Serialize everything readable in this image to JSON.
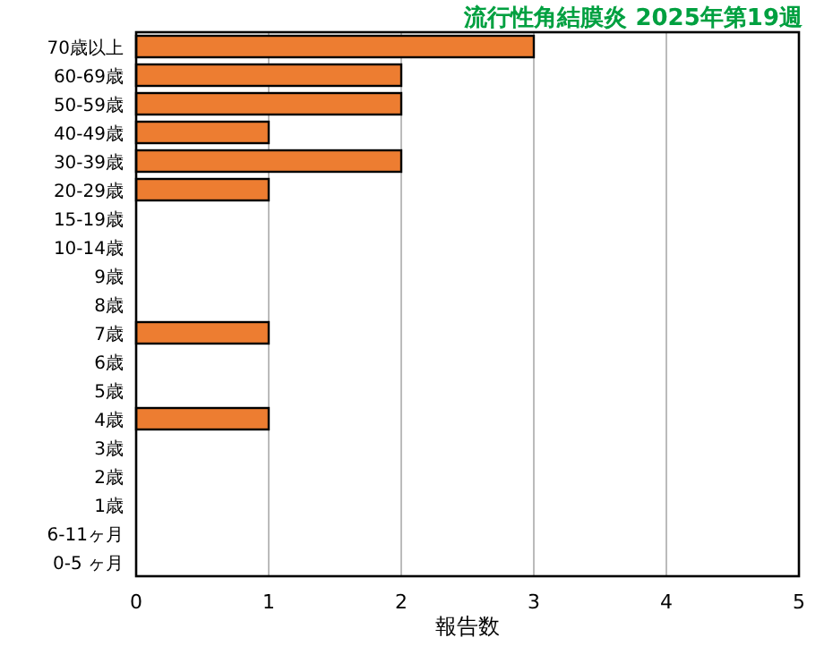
{
  "chart_data": {
    "type": "bar",
    "orientation": "horizontal",
    "title": "流行性角結膜炎 2025年第19週",
    "xlabel": "報告数",
    "categories": [
      "70歳以上",
      "60-69歳",
      "50-59歳",
      "40-49歳",
      "30-39歳",
      "20-29歳",
      "15-19歳",
      "10-14歳",
      "9歳",
      "8歳",
      "7歳",
      "6歳",
      "5歳",
      "4歳",
      "3歳",
      "2歳",
      "1歳",
      "6-11ヶ月",
      "0-5 ヶ月"
    ],
    "values": [
      3,
      2,
      2,
      1,
      2,
      1,
      0,
      0,
      0,
      0,
      1,
      0,
      0,
      1,
      0,
      0,
      0,
      0,
      0
    ],
    "color": "#ed7d31",
    "xlim": [
      0,
      5
    ],
    "xticks": [
      0,
      1,
      2,
      3,
      4,
      5
    ],
    "grid": "x"
  }
}
